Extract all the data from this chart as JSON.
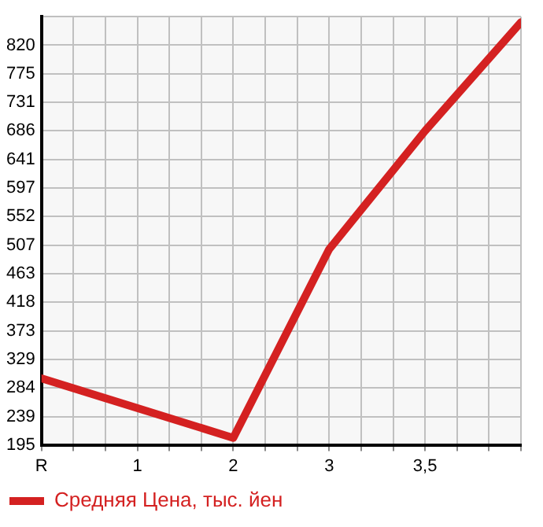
{
  "chart_data": {
    "type": "line",
    "categories": [
      "R",
      "1",
      "2",
      "3",
      "3,5",
      null
    ],
    "series": [
      {
        "name": "Средняя Цена, тыс. йен",
        "color": "#d42121",
        "values": [
          299,
          null,
          206,
          501,
          686,
          856
        ]
      }
    ],
    "ylim": [
      195,
      864.6
    ],
    "yticks": [
      195,
      239,
      284,
      329,
      373,
      418,
      463,
      507,
      552,
      597,
      641,
      686,
      731,
      775,
      820,
      {
        "value": 864.6,
        "label": null
      }
    ],
    "grid": true,
    "legend": "bottom left",
    "marker": "none",
    "line_style": "solid"
  }
}
